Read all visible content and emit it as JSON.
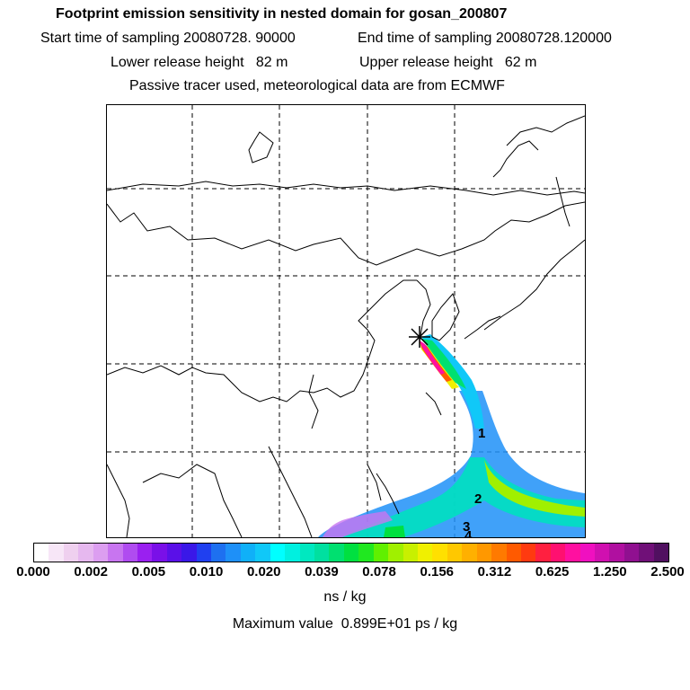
{
  "header": {
    "title": "Footprint emission sensitivity in nested domain for gosan_200807",
    "start_label": "Start time of sampling 20080728. 90000",
    "end_label": "End time of sampling 20080728.120000",
    "lower_label": "Lower release height   82 m",
    "upper_label": "Upper release height   62 m",
    "tracer_note": "Passive tracer used, meteorological data are from ECMWF"
  },
  "map": {
    "release_marker": "star-icon",
    "contour_labels": [
      "1",
      "2",
      "3",
      "4"
    ]
  },
  "colorbar": {
    "ticks": [
      "0.000",
      "0.002",
      "0.005",
      "0.010",
      "0.020",
      "0.039",
      "0.078",
      "0.156",
      "0.312",
      "0.625",
      "1.250",
      "2.500"
    ],
    "colors": [
      "#ffffff",
      "#f7e6f7",
      "#efd0ef",
      "#e6b8ef",
      "#dc9ef0",
      "#c875f0",
      "#b04cf0",
      "#9a20f0",
      "#7a10e8",
      "#5a10e8",
      "#3a18e8",
      "#2040f0",
      "#1e70f0",
      "#1e90f8",
      "#10b0f8",
      "#10c8f8",
      "#00ffff",
      "#00f0e0",
      "#00e8c0",
      "#00e0a0",
      "#00e070",
      "#00e040",
      "#20e820",
      "#60f000",
      "#a0f000",
      "#c8f000",
      "#f0f000",
      "#ffe000",
      "#ffc800",
      "#ffb000",
      "#ff9800",
      "#ff7a00",
      "#ff5a00",
      "#ff3a10",
      "#ff2040",
      "#ff1070",
      "#ff10a0",
      "#f010c0",
      "#d010b0",
      "#b010a0",
      "#901090",
      "#701078",
      "#501060"
    ],
    "unit": "ns / kg"
  },
  "max_value": {
    "label": "Maximum value",
    "value": "0.899E+01 ps / kg"
  }
}
